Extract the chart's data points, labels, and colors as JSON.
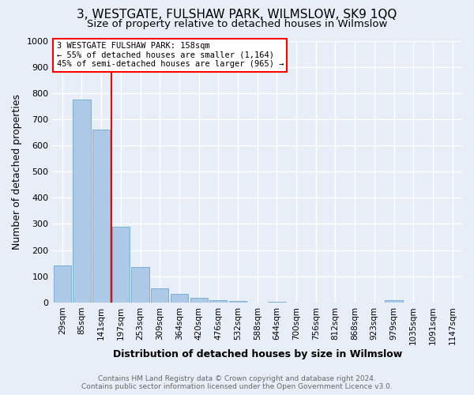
{
  "title": "3, WESTGATE, FULSHAW PARK, WILMSLOW, SK9 1QQ",
  "subtitle": "Size of property relative to detached houses in Wilmslow",
  "xlabel": "Distribution of detached houses by size in Wilmslow",
  "ylabel": "Number of detached properties",
  "footer_line1": "Contains HM Land Registry data © Crown copyright and database right 2024.",
  "footer_line2": "Contains public sector information licensed under the Open Government Licence v3.0.",
  "bar_labels": [
    "29sqm",
    "85sqm",
    "141sqm",
    "197sqm",
    "253sqm",
    "309sqm",
    "364sqm",
    "420sqm",
    "476sqm",
    "532sqm",
    "588sqm",
    "644sqm",
    "700sqm",
    "756sqm",
    "812sqm",
    "868sqm",
    "923sqm",
    "979sqm",
    "1035sqm",
    "1091sqm",
    "1147sqm"
  ],
  "bar_values": [
    140,
    775,
    660,
    290,
    135,
    55,
    32,
    18,
    10,
    5,
    0,
    2,
    0,
    0,
    0,
    0,
    0,
    10,
    0,
    0,
    0
  ],
  "bar_color": "#adc9e8",
  "bar_edgecolor": "#7aafd4",
  "vline_x": 2.5,
  "vline_color": "red",
  "annotation_title": "3 WESTGATE FULSHAW PARK: 158sqm",
  "annotation_line1": "← 55% of detached houses are smaller (1,164)",
  "annotation_line2": "45% of semi-detached houses are larger (965) →",
  "annotation_box_facecolor": "white",
  "annotation_box_edgecolor": "red",
  "ylim": [
    0,
    1000
  ],
  "yticks": [
    0,
    100,
    200,
    300,
    400,
    500,
    600,
    700,
    800,
    900,
    1000
  ],
  "bg_color": "#e8eef8",
  "plot_bg_color": "#e8eef8",
  "grid_color": "white",
  "title_fontsize": 11,
  "subtitle_fontsize": 9.5,
  "xlabel_fontsize": 9,
  "ylabel_fontsize": 9,
  "footer_fontsize": 6.5,
  "tick_fontsize": 7.5,
  "ytick_fontsize": 8
}
